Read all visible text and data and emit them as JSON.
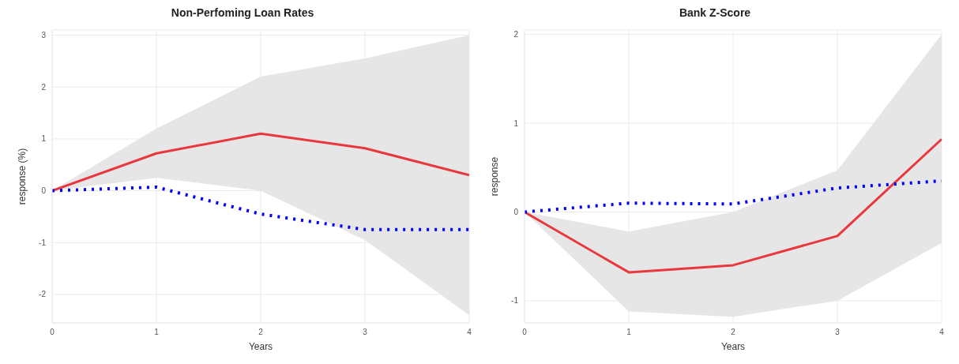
{
  "chart_data": [
    {
      "type": "line",
      "title": "Non-Perfoming Loan Rates",
      "xlabel": "Years",
      "ylabel": "response (%)",
      "x": [
        0,
        1,
        2,
        3,
        4
      ],
      "xlim": [
        0,
        4
      ],
      "xticks": [
        0,
        1,
        2,
        3,
        4
      ],
      "ylim": [
        -2.55,
        3.1
      ],
      "yticks": [
        -2,
        -1,
        0,
        1,
        2,
        3
      ],
      "grid": true,
      "legend": false,
      "marker": "none",
      "series": [
        {
          "color": "#e8383d",
          "line_style": "solid",
          "values": [
            0,
            0.72,
            1.1,
            0.82,
            0.3
          ],
          "lower": [
            0,
            0.25,
            0.0,
            -0.95,
            -2.4
          ],
          "upper": [
            0,
            1.2,
            2.2,
            2.55,
            3.0
          ]
        },
        {
          "color": "#0000ff",
          "line_style": "dotted",
          "values": [
            0,
            0.07,
            -0.45,
            -0.75,
            -0.75
          ]
        }
      ]
    },
    {
      "type": "line",
      "title": "Bank Z-Score",
      "xlabel": "Years",
      "ylabel": "response",
      "x": [
        0,
        1,
        2,
        3,
        4
      ],
      "xlim": [
        0,
        4
      ],
      "xticks": [
        0,
        1,
        2,
        3,
        4
      ],
      "ylim": [
        -1.25,
        2.05
      ],
      "yticks": [
        -1,
        0,
        1,
        2
      ],
      "grid": true,
      "legend": false,
      "marker": "none",
      "series": [
        {
          "color": "#e8383d",
          "line_style": "solid",
          "values": [
            0,
            -0.68,
            -0.6,
            -0.27,
            0.82
          ],
          "lower": [
            0,
            -1.12,
            -1.18,
            -1.0,
            -0.35
          ],
          "upper": [
            0,
            -0.22,
            0.0,
            0.47,
            2.0
          ]
        },
        {
          "color": "#0000ff",
          "line_style": "dotted",
          "values": [
            0,
            0.1,
            0.09,
            0.27,
            0.35
          ]
        }
      ]
    }
  ]
}
